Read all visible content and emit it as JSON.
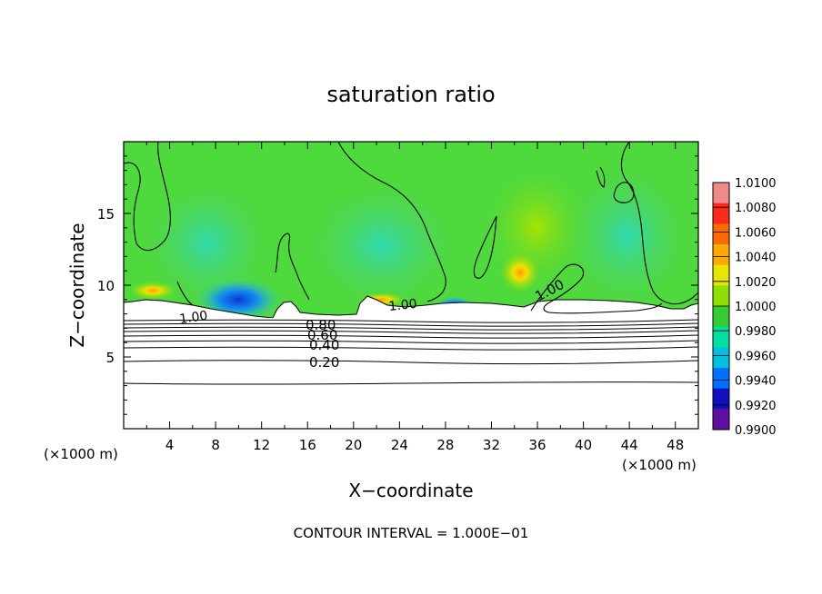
{
  "chart_data": {
    "type": "heatmap",
    "title": "saturation ratio",
    "xlabel": "X−coordinate",
    "ylabel": "Z−coordinate",
    "x_unit_left": "(×1000 m)",
    "x_unit_right": "(×1000 m)",
    "xlim": [
      0,
      50
    ],
    "ylim": [
      0,
      20
    ],
    "x_ticks": [
      "4",
      "8",
      "12",
      "16",
      "20",
      "24",
      "28",
      "32",
      "36",
      "40",
      "44",
      "48"
    ],
    "y_ticks": [
      "5",
      "10",
      "15"
    ],
    "colorbar": {
      "labels": [
        "1.0100",
        "1.0080",
        "1.0060",
        "1.0040",
        "1.0020",
        "1.0000",
        "0.9980",
        "0.9960",
        "0.9940",
        "0.9920",
        "0.9900"
      ],
      "colors": [
        "#f08a8a",
        "#ff2a1a",
        "#ff6a00",
        "#ffaa00",
        "#e6e600",
        "#8ee000",
        "#33cc33",
        "#00e0a0",
        "#00c0e0",
        "#0070ff",
        "#1010c0",
        "#6010a0"
      ]
    },
    "contour_labels": [
      "1.00",
      "1.00",
      "1.00",
      "0.80",
      "0.60",
      "0.40",
      "0.20"
    ],
    "contour_interval_text": "CONTOUR INTERVAL = 1.000E−01"
  }
}
